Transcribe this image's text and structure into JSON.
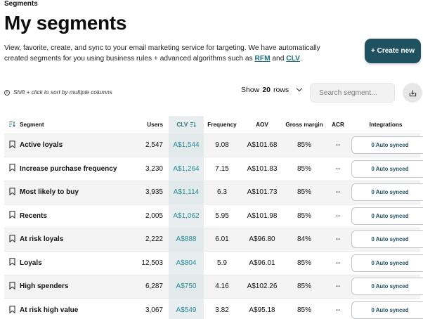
{
  "breadcrumb": "Segments",
  "title": "My segments",
  "description": {
    "text_before": "View, favorite, create, and sync to your email marketing service for targeting. We have automatically created segments for you using business rules + advanced algorithms such as ",
    "link_rfm": "RFM",
    "text_and": " and ",
    "link_clv": "CLV",
    "text_after": "."
  },
  "create_button": "+ Create new",
  "hint": "Shift + click to sort by multiple columns",
  "rows_select": {
    "prefix": "Show",
    "count": "20",
    "suffix": "rows"
  },
  "search": {
    "placeholder": "Search segment...",
    "value": ""
  },
  "table": {
    "headers": [
      "Segment",
      "Users",
      "CLV",
      "Frequency",
      "AOV",
      "Gross margin",
      "ACR",
      "Integrations"
    ],
    "rows": [
      {
        "segment": "Active loyals",
        "users": "2,547",
        "clv": "A$1,544",
        "frequency": "9.08",
        "aov": "A$101.68",
        "margin": "85%",
        "acr": "--",
        "integration": "0 Auto synced"
      },
      {
        "segment": "Increase purchase frequency",
        "users": "3,230",
        "clv": "A$1,264",
        "frequency": "7.15",
        "aov": "A$101.83",
        "margin": "85%",
        "acr": "--",
        "integration": "0 Auto synced"
      },
      {
        "segment": "Most likely to buy",
        "users": "3,935",
        "clv": "A$1,114",
        "frequency": "6.3",
        "aov": "A$101.73",
        "margin": "85%",
        "acr": "--",
        "integration": "0 Auto synced"
      },
      {
        "segment": "Recents",
        "users": "2,005",
        "clv": "A$1,062",
        "frequency": "5.95",
        "aov": "A$101.98",
        "margin": "85%",
        "acr": "--",
        "integration": "0 Auto synced"
      },
      {
        "segment": "At risk loyals",
        "users": "2,222",
        "clv": "A$888",
        "frequency": "6.01",
        "aov": "A$96.80",
        "margin": "84%",
        "acr": "--",
        "integration": "0 Auto synced"
      },
      {
        "segment": "Loyals",
        "users": "12,503",
        "clv": "A$804",
        "frequency": "5.9",
        "aov": "A$96.01",
        "margin": "85%",
        "acr": "--",
        "integration": "0 Auto synced"
      },
      {
        "segment": "High spenders",
        "users": "6,287",
        "clv": "A$750",
        "frequency": "4.16",
        "aov": "A$102.26",
        "margin": "85%",
        "acr": "--",
        "integration": "0 Auto synced"
      },
      {
        "segment": "At risk high value",
        "users": "3,067",
        "clv": "A$549",
        "frequency": "3.82",
        "aov": "A$95.18",
        "margin": "85%",
        "acr": "--",
        "integration": "0 Auto synced"
      }
    ]
  },
  "colors": {
    "accent": "#1f5161",
    "link": "#1f6f7a",
    "clv_text": "#2a8a96"
  },
  "icons": [
    "info-icon",
    "chevron-down-icon",
    "download-icon",
    "sort-icon",
    "bookmark-icon"
  ]
}
